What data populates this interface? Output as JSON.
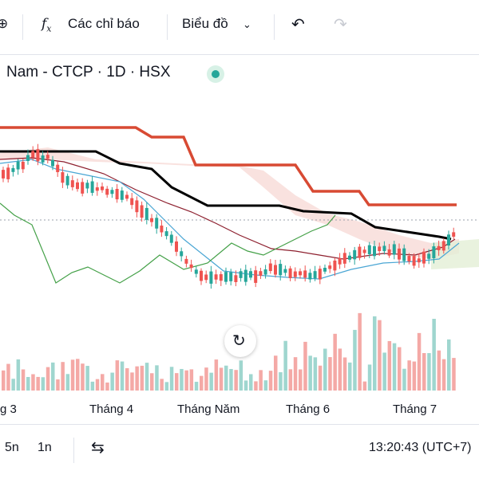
{
  "toolbar": {
    "indicators_label": "Các chỉ báo",
    "chart_type_label": "Biểu đồ",
    "indicators_icon": "function-icon",
    "undo_icon": "undo-icon",
    "redo_icon": "redo-icon"
  },
  "legend": {
    "symbol_text": "Nam - CTCP · 1D · HSX",
    "status": "market-open-dot"
  },
  "x_axis": {
    "labels": [
      "g 3",
      "Tháng 4",
      "Tháng Năm",
      "Tháng 6",
      "Tháng 7"
    ]
  },
  "bottom_bar": {
    "range_5n": "5n",
    "range_1n": "1n",
    "date_range_icon": "calendar-range-icon",
    "time": "13:20:43 (UTC+7)"
  },
  "colors": {
    "up": "#26a69a",
    "down": "#ef5350",
    "kijun": "#000000",
    "tenkan": "#8d1f2e",
    "senkou_b_red": "#d84a33",
    "chikou": "#43a047",
    "blue_line": "#4aa6d4",
    "cloud": "#f7d6d2",
    "cloud_green": "#e3efd6"
  }
}
